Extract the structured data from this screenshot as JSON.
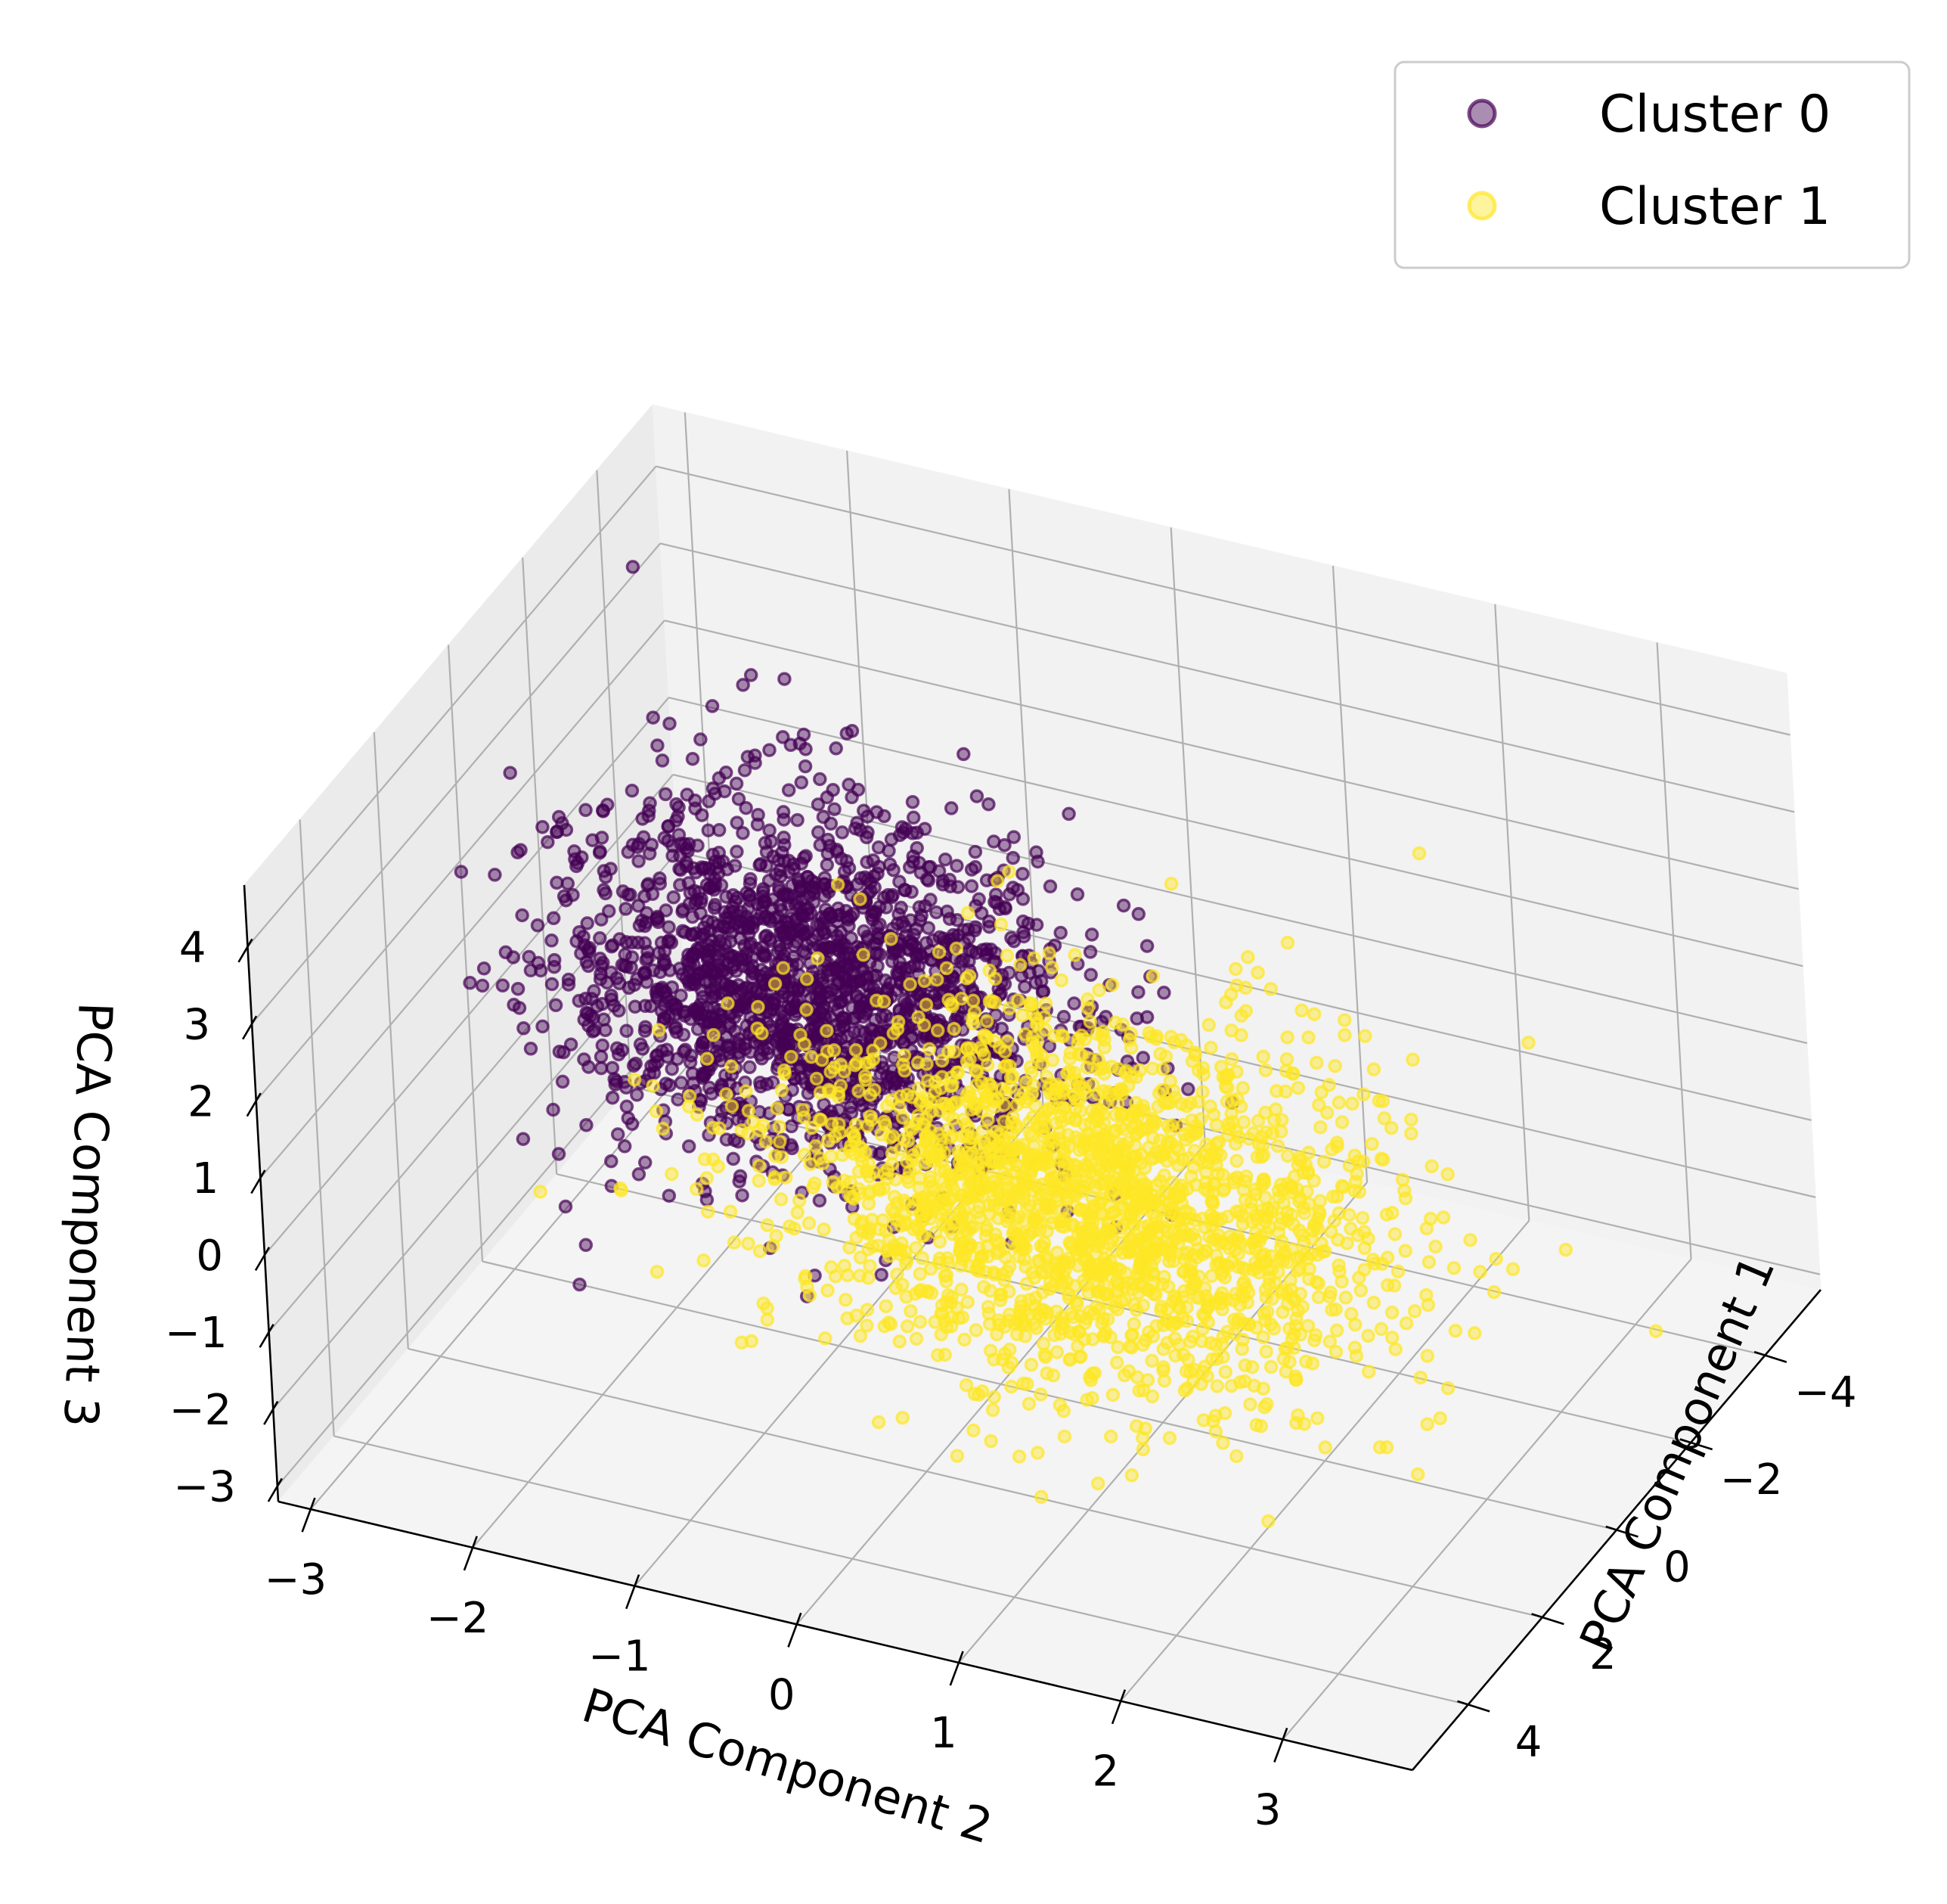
{
  "chart_data": {
    "type": "scatter",
    "title": "",
    "xlabel": "PCA Component 1",
    "ylabel": "PCA Component 2",
    "zlabel": "PCA Component 3",
    "x_ticks": [
      "−4",
      "−2",
      "0",
      "2",
      "4"
    ],
    "y_ticks": [
      "−3",
      "−2",
      "−1",
      "0",
      "1",
      "2",
      "3"
    ],
    "z_ticks": [
      "−3",
      "−2",
      "−1",
      "0",
      "1",
      "2",
      "3",
      "4"
    ],
    "xlim": [
      -5.5,
      5.5
    ],
    "ylim": [
      -3.2,
      3.8
    ],
    "zlim": [
      -3.2,
      4.8
    ],
    "grid": true,
    "legend_position": "top-right",
    "series": [
      {
        "name": "Cluster 0",
        "color": "#440154",
        "alpha": 0.45,
        "center": [
          -1.0,
          -1.3,
          0.7
        ],
        "spread": [
          1.0,
          0.75,
          1.0
        ],
        "count": 2000
      },
      {
        "name": "Cluster 1",
        "color": "#fde725",
        "alpha": 0.45,
        "center": [
          1.2,
          0.9,
          0.3
        ],
        "spread": [
          1.1,
          0.9,
          1.0
        ],
        "count": 2200
      }
    ]
  }
}
